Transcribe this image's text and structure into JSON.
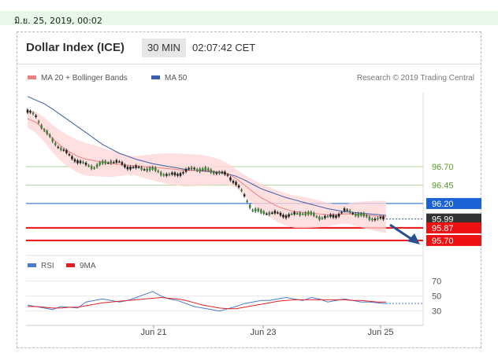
{
  "date_bar": "มิ.ย. 25, 2019, 00:02",
  "header": {
    "title": "Dollar Index (ICE)",
    "timeframe": "30 MIN",
    "clock": "02:07:42 CET"
  },
  "legend": {
    "ma20_label": "MA 20 + Bollinger Bands",
    "ma50_label": "MA 50",
    "credit": "Research © 2019 Trading Central"
  },
  "rsi_legend": {
    "rsi_label": "RSI",
    "ma_label": "9MA"
  },
  "colors": {
    "ma20": "#f08080",
    "band": "#ffd6d6",
    "ma50": "#3b5ea8",
    "green_level": "#b5d99c",
    "blue_level": "#1a62d6",
    "red_level": "#ee1111",
    "price_box": "#333333",
    "rsi": "#4a7bd0",
    "rsi_ma": "#e02020"
  },
  "price_levels": [
    {
      "label": "96.70",
      "kind": "resistance-green"
    },
    {
      "label": "96.45",
      "kind": "resistance-green"
    },
    {
      "label": "96.20",
      "kind": "pivot-blue"
    },
    {
      "label": "95.99",
      "kind": "last-price"
    },
    {
      "label": "95.87",
      "kind": "support-red"
    },
    {
      "label": "95.70",
      "kind": "support-red"
    }
  ],
  "rsi_ticks": [
    "70",
    "50",
    "30"
  ],
  "x_axis": [
    "Jun 21",
    "Jun 23",
    "Jun 25"
  ],
  "chart_data": {
    "type": "line",
    "title": "Dollar Index (ICE)",
    "series": [
      {
        "name": "Price",
        "values": [
          97.45,
          97.38,
          97.2,
          97.05,
          96.95,
          96.85,
          96.78,
          96.72,
          96.7,
          96.74,
          96.78,
          96.75,
          96.7,
          96.68,
          96.68,
          96.66,
          96.62,
          96.58,
          96.6,
          96.64,
          96.68,
          96.66,
          96.64,
          96.62,
          96.58,
          96.48,
          96.3,
          96.12,
          96.08,
          96.08,
          96.06,
          96.04,
          96.05,
          96.08,
          96.05,
          96.02,
          96.01,
          96.04,
          96.1,
          96.08,
          96.04,
          96.01,
          95.99,
          95.99
        ]
      },
      {
        "name": "MA 20",
        "values": [
          97.35,
          97.3,
          97.2,
          97.08,
          96.98,
          96.9,
          96.84,
          96.8,
          96.78,
          96.76,
          96.74,
          96.73,
          96.72,
          96.71,
          96.7,
          96.69,
          96.68,
          96.67,
          96.66,
          96.65,
          96.65,
          96.65,
          96.64,
          96.63,
          96.6,
          96.54,
          96.45,
          96.36,
          96.28,
          96.22,
          96.16,
          96.12,
          96.09,
          96.08,
          96.07,
          96.06,
          96.05,
          96.05,
          96.06,
          96.06,
          96.05,
          96.04,
          96.03,
          96.02
        ]
      },
      {
        "name": "MA 50",
        "values": [
          97.65,
          97.6,
          97.55,
          97.48,
          97.4,
          97.32,
          97.24,
          97.16,
          97.08,
          97.0,
          96.94,
          96.88,
          96.84,
          96.8,
          96.77,
          96.74,
          96.72,
          96.7,
          96.68,
          96.66,
          96.65,
          96.64,
          96.63,
          96.62,
          96.6,
          96.57,
          96.52,
          96.46,
          96.4,
          96.36,
          96.32,
          96.28,
          96.25,
          96.22,
          96.19,
          96.16,
          96.13,
          96.11,
          96.09,
          96.08,
          96.07,
          96.06,
          96.05,
          96.04
        ]
      }
    ],
    "rsi": [
      38,
      36,
      34,
      32,
      36,
      35,
      34,
      42,
      44,
      46,
      44,
      42,
      44,
      48,
      52,
      56,
      50,
      46,
      44,
      40,
      36,
      34,
      32,
      30,
      33,
      36,
      40,
      42,
      44,
      44,
      46,
      48,
      46,
      44,
      48,
      46,
      42,
      44,
      46,
      44,
      42,
      42,
      41,
      40
    ],
    "rsi_ma": [
      36,
      36,
      35,
      34,
      34,
      35,
      35,
      37,
      39,
      41,
      42,
      43,
      44,
      45,
      46,
      47,
      48,
      47,
      46,
      44,
      41,
      38,
      36,
      34,
      33,
      33,
      35,
      37,
      39,
      41,
      43,
      44,
      45,
      45,
      45,
      45,
      45,
      45,
      45,
      44,
      44,
      43,
      42,
      42
    ],
    "ylim": [
      95.55,
      97.7
    ],
    "rsi_ylim": [
      15,
      80
    ],
    "forecast": "down-arrow"
  }
}
